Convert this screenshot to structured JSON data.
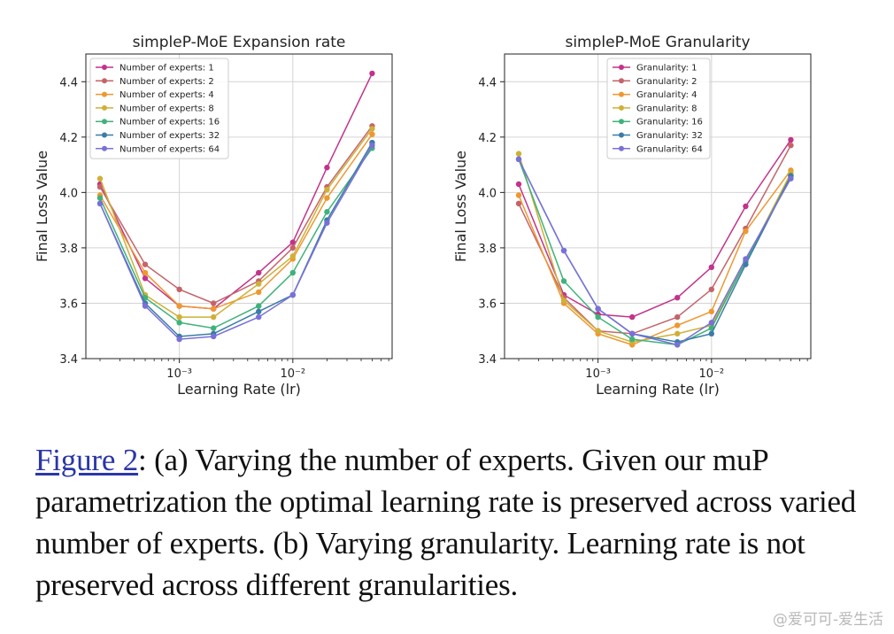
{
  "chart_data": [
    {
      "type": "line",
      "title": "simpleP-MoE Expansion rate",
      "xlabel": "Learning Rate (lr)",
      "ylabel": "Final Loss Value",
      "xscale": "log",
      "x": [
        0.0002,
        0.0005,
        0.001,
        0.002,
        0.005,
        0.01,
        0.02,
        0.05
      ],
      "xticks": [
        {
          "value": 0.001,
          "label": "10⁻³"
        },
        {
          "value": 0.01,
          "label": "10⁻²"
        }
      ],
      "xlim": [
        0.00015,
        0.075
      ],
      "ylim": [
        3.4,
        4.5
      ],
      "yticks": [
        3.4,
        3.6,
        3.8,
        4.0,
        4.2,
        4.4
      ],
      "grid": true,
      "legend": "top-left",
      "series": [
        {
          "name": "Number of experts: 1",
          "color": "#c2338a",
          "values": [
            4.03,
            3.69,
            3.59,
            3.58,
            3.71,
            3.82,
            4.09,
            4.43
          ]
        },
        {
          "name": "Number of experts: 2",
          "color": "#c4646a",
          "values": [
            4.02,
            3.74,
            3.65,
            3.6,
            3.68,
            3.8,
            4.02,
            4.24
          ]
        },
        {
          "name": "Number of experts: 4",
          "color": "#ee9830",
          "values": [
            3.99,
            3.71,
            3.59,
            3.58,
            3.64,
            3.76,
            3.98,
            4.21
          ]
        },
        {
          "name": "Number of experts: 8",
          "color": "#cfb038",
          "values": [
            4.05,
            3.63,
            3.55,
            3.55,
            3.67,
            3.77,
            4.01,
            4.23
          ]
        },
        {
          "name": "Number of experts: 16",
          "color": "#3fb27a",
          "values": [
            3.98,
            3.62,
            3.53,
            3.51,
            3.59,
            3.71,
            3.93,
            4.16
          ]
        },
        {
          "name": "Number of experts: 32",
          "color": "#3a7ca6",
          "values": [
            3.96,
            3.6,
            3.48,
            3.49,
            3.57,
            3.63,
            3.9,
            4.18
          ]
        },
        {
          "name": "Number of experts: 64",
          "color": "#7a70d8",
          "values": [
            3.96,
            3.59,
            3.47,
            3.48,
            3.55,
            3.63,
            3.89,
            4.17
          ]
        }
      ]
    },
    {
      "type": "line",
      "title": "simpleP-MoE Granularity",
      "xlabel": "Learning Rate (lr)",
      "ylabel": "Final Loss Value",
      "xscale": "log",
      "x": [
        0.0002,
        0.0005,
        0.001,
        0.002,
        0.005,
        0.01,
        0.02,
        0.05
      ],
      "xticks": [
        {
          "value": 0.001,
          "label": "10⁻³"
        },
        {
          "value": 0.01,
          "label": "10⁻²"
        }
      ],
      "xlim": [
        0.00015,
        0.075
      ],
      "ylim": [
        3.4,
        4.5
      ],
      "yticks": [
        3.4,
        3.6,
        3.8,
        4.0,
        4.2,
        4.4
      ],
      "grid": true,
      "legend": "top-center",
      "series": [
        {
          "name": "Granularity: 1",
          "color": "#c2338a",
          "values": [
            4.03,
            3.63,
            3.56,
            3.55,
            3.62,
            3.73,
            3.95,
            4.19
          ]
        },
        {
          "name": "Granularity: 2",
          "color": "#c4646a",
          "values": [
            3.96,
            3.62,
            3.5,
            3.49,
            3.55,
            3.65,
            3.87,
            4.17
          ]
        },
        {
          "name": "Granularity: 4",
          "color": "#ee9830",
          "values": [
            3.99,
            3.6,
            3.49,
            3.45,
            3.52,
            3.57,
            3.86,
            4.08
          ]
        },
        {
          "name": "Granularity: 8",
          "color": "#cfb038",
          "values": [
            4.14,
            3.61,
            3.5,
            3.46,
            3.49,
            3.52,
            3.75,
            4.07
          ]
        },
        {
          "name": "Granularity: 16",
          "color": "#3fb27a",
          "values": [
            4.12,
            3.68,
            3.55,
            3.47,
            3.45,
            3.51,
            3.75,
            4.06
          ]
        },
        {
          "name": "Granularity: 32",
          "color": "#3a7ca6",
          "values": [
            4.12,
            3.79,
            3.58,
            3.49,
            3.46,
            3.49,
            3.74,
            4.06
          ]
        },
        {
          "name": "Granularity: 64",
          "color": "#7a70d8",
          "values": [
            4.12,
            3.79,
            3.58,
            3.49,
            3.45,
            3.53,
            3.76,
            4.05
          ]
        }
      ]
    }
  ],
  "caption": {
    "link": "Figure 2",
    "text": ": (a) Varying the number of experts. Given our muP parametrization the optimal learning rate is preserved across varied number of experts. (b) Varying granularity. Learning rate is not preserved across different granularities."
  },
  "watermark": "@爱可可-爱生活"
}
